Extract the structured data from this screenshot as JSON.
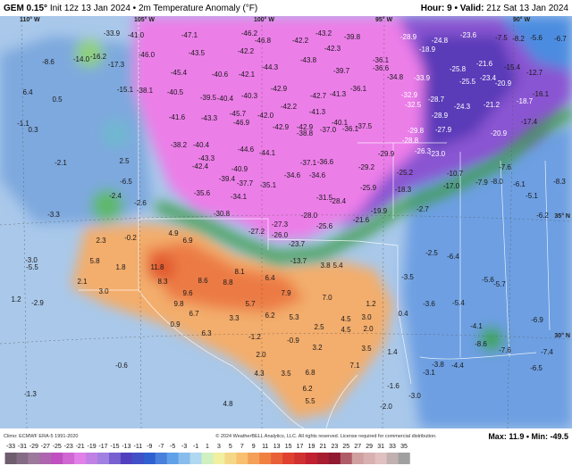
{
  "header": {
    "model": "GEM 0.15°",
    "desc": "Init 12z 13 Jan 2024 • 2m Temperature Anomaly (°F)",
    "hour": "Hour: 9",
    "valid_label": "• Valid:",
    "valid": "21z Sat 13 Jan 2024"
  },
  "map": {
    "grid_labels": [
      "110° W",
      "105° W",
      "100° W",
      "95° W",
      "90° W",
      "35° N",
      "30° N"
    ],
    "labels": [
      "-33.9",
      "-41.0",
      "-47.1",
      "-46.2",
      "-46.8",
      "-43.2",
      "-42.2",
      "-39.8",
      "-42.3",
      "-43.5",
      "-42.2",
      "-46.0",
      "-45.4",
      "-40.6",
      "-42.1",
      "-44.3",
      "-43.8",
      "-39.7",
      "-36.1",
      "-36.6",
      "-34.8",
      "-33.9",
      "-38.1",
      "-40.5",
      "-39.5",
      "-40.4",
      "-40.3",
      "-42.9",
      "-42.7",
      "-41.3",
      "-36.1",
      "-32.9",
      "-32.5",
      "-41.6",
      "-43.3",
      "-45.7",
      "-42.0",
      "-42.2",
      "-41.3",
      "-40.1",
      "-37.5",
      "-46.9",
      "-42.9",
      "-42.9",
      "-38.2",
      "-40.4",
      "-43.3",
      "-44.6",
      "-44.1",
      "-38.8",
      "-37.0",
      "-36.1",
      "-37.1",
      "-36.6",
      "-42.4",
      "-40.9",
      "-34.6",
      "-34.6",
      "-31.5",
      "-28.4",
      "-39.4",
      "-37.7",
      "-35.1",
      "-35.6",
      "-34.1",
      "-28.9",
      "-24.8",
      "-23.6",
      "-18.9",
      "-25.8",
      "-23.4",
      "-25.5",
      "-20.9",
      "-21.6",
      "-15.4",
      "-12.7",
      "-28.7",
      "-24.3",
      "-21.2",
      "-28.9",
      "-29.8",
      "-27.9",
      "-20.9",
      "-28.8",
      "-26.3",
      "-23.0",
      "-29.2",
      "-29.9",
      "-25.2",
      "-16.1",
      "-18.7",
      "-17.4",
      "-7.5",
      "-8.2",
      "-5.6",
      "-6.7",
      "-25.9",
      "-19.9",
      "-21.6",
      "-28.0",
      "-25.6",
      "-27.3",
      "-26.0",
      "-27.2",
      "-23.7",
      "-30.8",
      "-18.3",
      "-17.0",
      "-10.7",
      "-13.7",
      "-7.6",
      "-7.9",
      "-8.0",
      "-2.7",
      "-2.5",
      "-6.1",
      "-8.3",
      "-5.1",
      "-6.2",
      "4.9",
      "6.9",
      "5.8",
      "11.8",
      "8.3",
      "8.1",
      "6.4",
      "7.9",
      "3.8",
      "5.4",
      "8.6",
      "8.8",
      "9.6",
      "9.8",
      "6.7",
      "5.7",
      "6.2",
      "5.3",
      "3.3",
      "7.0",
      "4.5",
      "4.5",
      "3.0",
      "6.3",
      "2.0",
      "1.2",
      "0.4",
      "3.5",
      "3.2",
      "2.5",
      "6.8",
      "6.2",
      "3.5",
      "4.8",
      "5.5",
      "7.1",
      "2.0",
      "4.3",
      "3.0",
      "2.3",
      "1.8",
      "2.1",
      "0.9",
      "-0.2",
      "1.2",
      "-3.0",
      "-5.5",
      "-2.9",
      "-1.2",
      "-0.9",
      "-1.3",
      "-0.6",
      "-1.6",
      "-3.0",
      "-2.0",
      "1.4",
      "-3.1",
      "-3.8",
      "-6.4",
      "-5.6",
      "-3.5",
      "-3.6",
      "-5.4",
      "-6.9",
      "-7.6",
      "-7.4",
      "-6.5",
      "-4.4",
      "-8.6",
      "-4.1",
      "-5.7",
      "6.4",
      "0.5",
      "-1.1",
      "0.3",
      "-2.1",
      "-3.3",
      "2.5",
      "-6.5",
      "-2.4",
      "-2.6",
      "-8.6",
      "-14.0",
      "-16.2",
      "-17.3",
      "-15.1"
    ]
  },
  "legend": {
    "ticks": [
      -33,
      -31,
      -29,
      -27,
      -25,
      -23,
      -21,
      -19,
      -17,
      -15,
      -13,
      -11,
      -9,
      -7,
      -5,
      -3,
      -1,
      1,
      3,
      5,
      7,
      9,
      11,
      13,
      15,
      17,
      19,
      21,
      23,
      25,
      27,
      29,
      31,
      33,
      35
    ]
  },
  "footer": {
    "climo": "Climo: ECMWF ERA-5 1991-2020",
    "copyright": "© 2024 WeatherBELL Analytics, LLC. All rights reserved. License required for commercial distribution.",
    "maxmin": "Max: 11.9 • Min: -49.5"
  }
}
